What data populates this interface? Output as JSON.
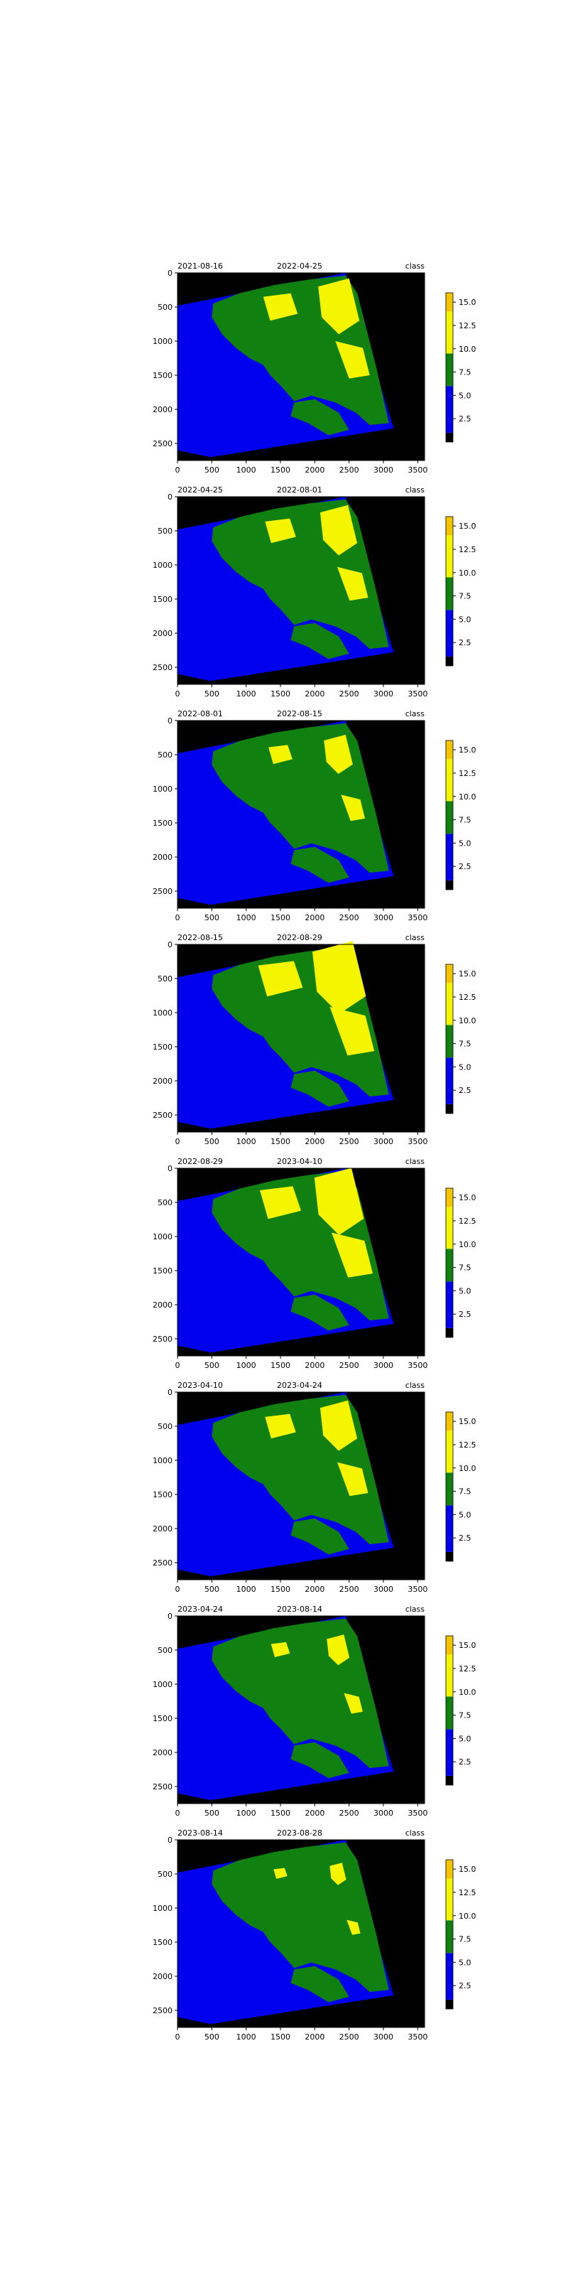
{
  "chart_data": {
    "type": "heatmap",
    "colors": {
      "class_low": "#000000",
      "class_mid_low": "#0000ee",
      "class_mid": "#108010",
      "class_high": "#f5f500",
      "class_top": "#f4c400",
      "nodata": "#000000"
    },
    "x_ticks": [
      0,
      500,
      1000,
      1500,
      2000,
      2500,
      3000,
      3500
    ],
    "y_ticks": [
      0,
      500,
      1000,
      1500,
      2000,
      2500
    ],
    "xlim": [
      0,
      3600
    ],
    "ylim": [
      2750,
      0
    ],
    "colorbar": {
      "label": "class",
      "ticks": [
        "2.5",
        "5.0",
        "7.5",
        "10.0",
        "12.5",
        "15.0"
      ],
      "range": [
        0,
        16
      ]
    },
    "panels": [
      {
        "from": "2021-08-16",
        "to": "2022-04-25",
        "label": "class"
      },
      {
        "from": "2022-04-25",
        "to": "2022-08-01",
        "label": "class"
      },
      {
        "from": "2022-08-01",
        "to": "2022-08-15",
        "label": "class"
      },
      {
        "from": "2022-08-15",
        "to": "2022-08-29",
        "label": "class"
      },
      {
        "from": "2022-08-29",
        "to": "2023-04-10",
        "label": "class"
      },
      {
        "from": "2023-04-10",
        "to": "2023-04-24",
        "label": "class"
      },
      {
        "from": "2023-04-24",
        "to": "2023-08-14",
        "label": "class"
      },
      {
        "from": "2023-08-14",
        "to": "2023-08-28",
        "label": "class"
      }
    ]
  }
}
